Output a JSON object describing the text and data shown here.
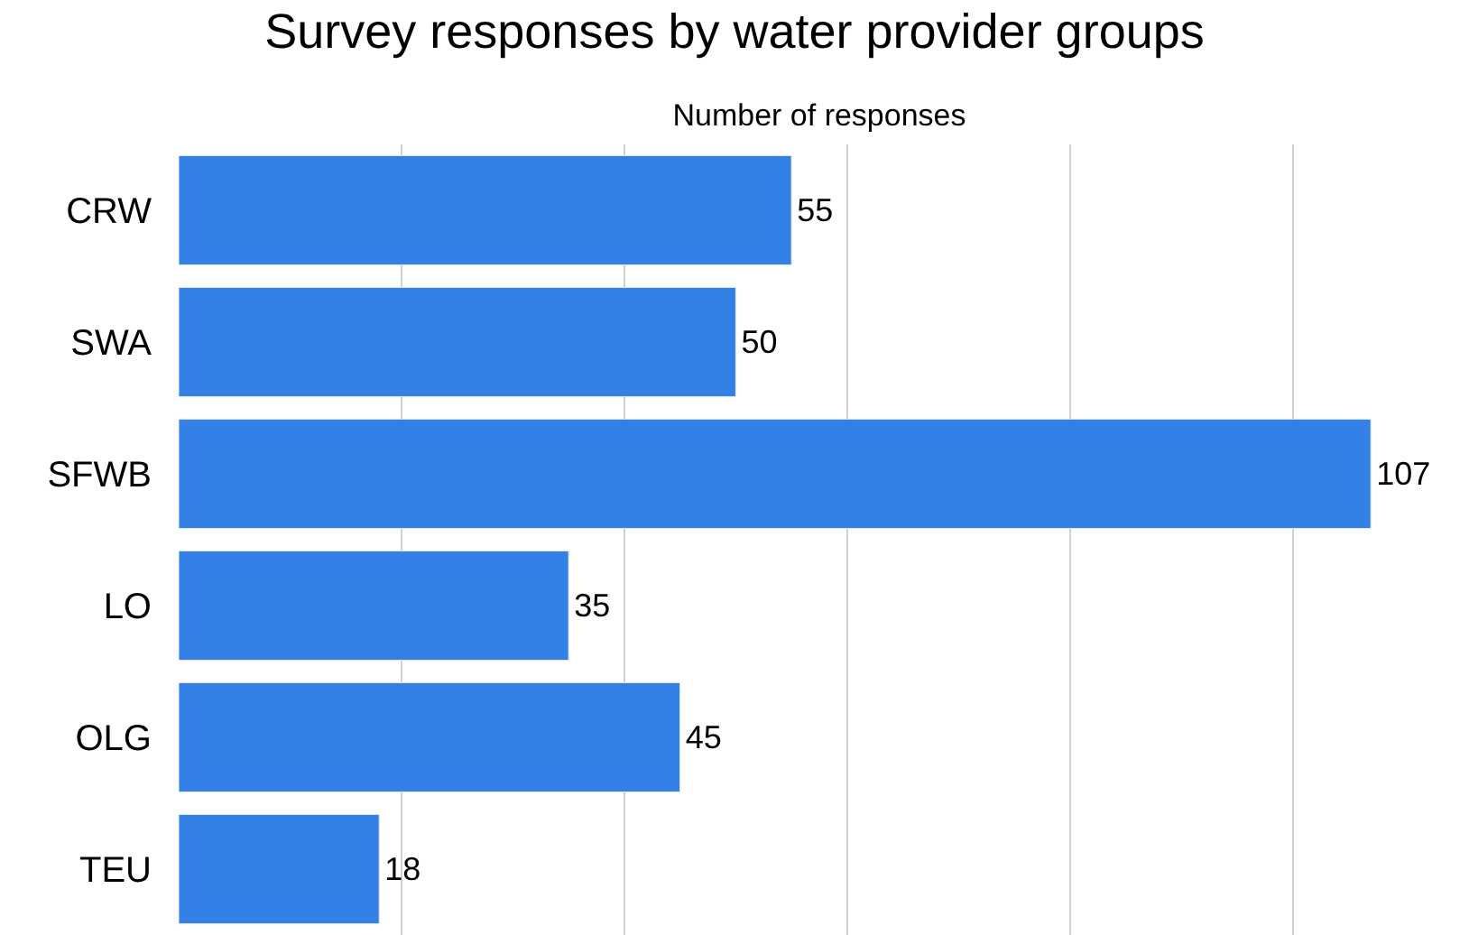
{
  "chart_data": {
    "type": "bar",
    "orientation": "horizontal",
    "title": "Survey responses by water provider groups",
    "xlabel": "Number of responses",
    "categories": [
      "CRW",
      "SWA",
      "SFWB",
      "LO",
      "OLG",
      "TEU"
    ],
    "values": [
      55,
      50,
      107,
      35,
      45,
      18
    ],
    "color": "#3380e6",
    "xlim": [
      0,
      115
    ],
    "xticks": [
      {
        "value": 20,
        "label": null
      },
      {
        "value": 40,
        "label": null
      },
      {
        "value": 60,
        "label": null
      },
      {
        "value": 80,
        "label": null
      },
      {
        "value": 100,
        "label": null
      }
    ],
    "data_labels": true,
    "grid": "x",
    "legend": false,
    "tick_labels": "y"
  }
}
